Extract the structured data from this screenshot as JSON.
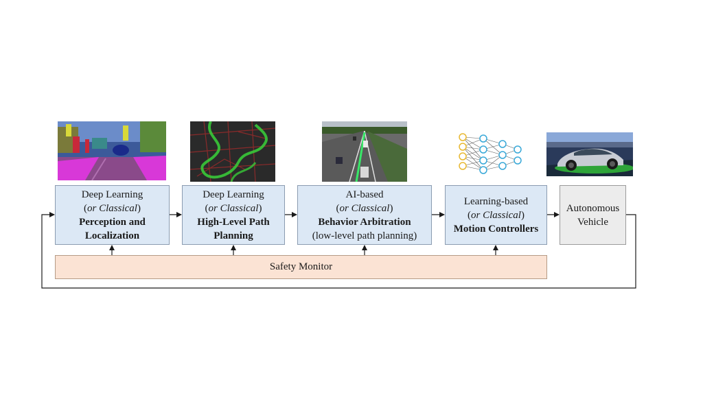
{
  "blocks": [
    {
      "line1": "Deep Learning",
      "line2_prefix": "(",
      "line2_italic": "or Classical",
      "line2_suffix": ")",
      "bold1": "Perception and",
      "bold2": "Localization"
    },
    {
      "line1": "Deep Learning",
      "line2_prefix": "(",
      "line2_italic": "or Classical",
      "line2_suffix": ")",
      "bold1": "High-Level Path",
      "bold2": "Planning"
    },
    {
      "line1": "AI-based",
      "line2_prefix": "(",
      "line2_italic": "or Classical",
      "line2_suffix": ")",
      "bold1": "Behavior Arbitration",
      "line4": "(low-level path planning)"
    },
    {
      "line1": "Learning-based",
      "line2_prefix": "(",
      "line2_italic": "or Classical",
      "line2_suffix": ")",
      "bold1": "Motion Controllers"
    },
    {
      "line1": "Autonomous",
      "line2": "Vehicle"
    }
  ],
  "safety_monitor": "Safety Monitor",
  "colors": {
    "block_fill": "#dce8f5",
    "vehicle_fill": "#ececec",
    "safety_fill": "#fbe3d4",
    "arrow": "#1a1a1a"
  }
}
